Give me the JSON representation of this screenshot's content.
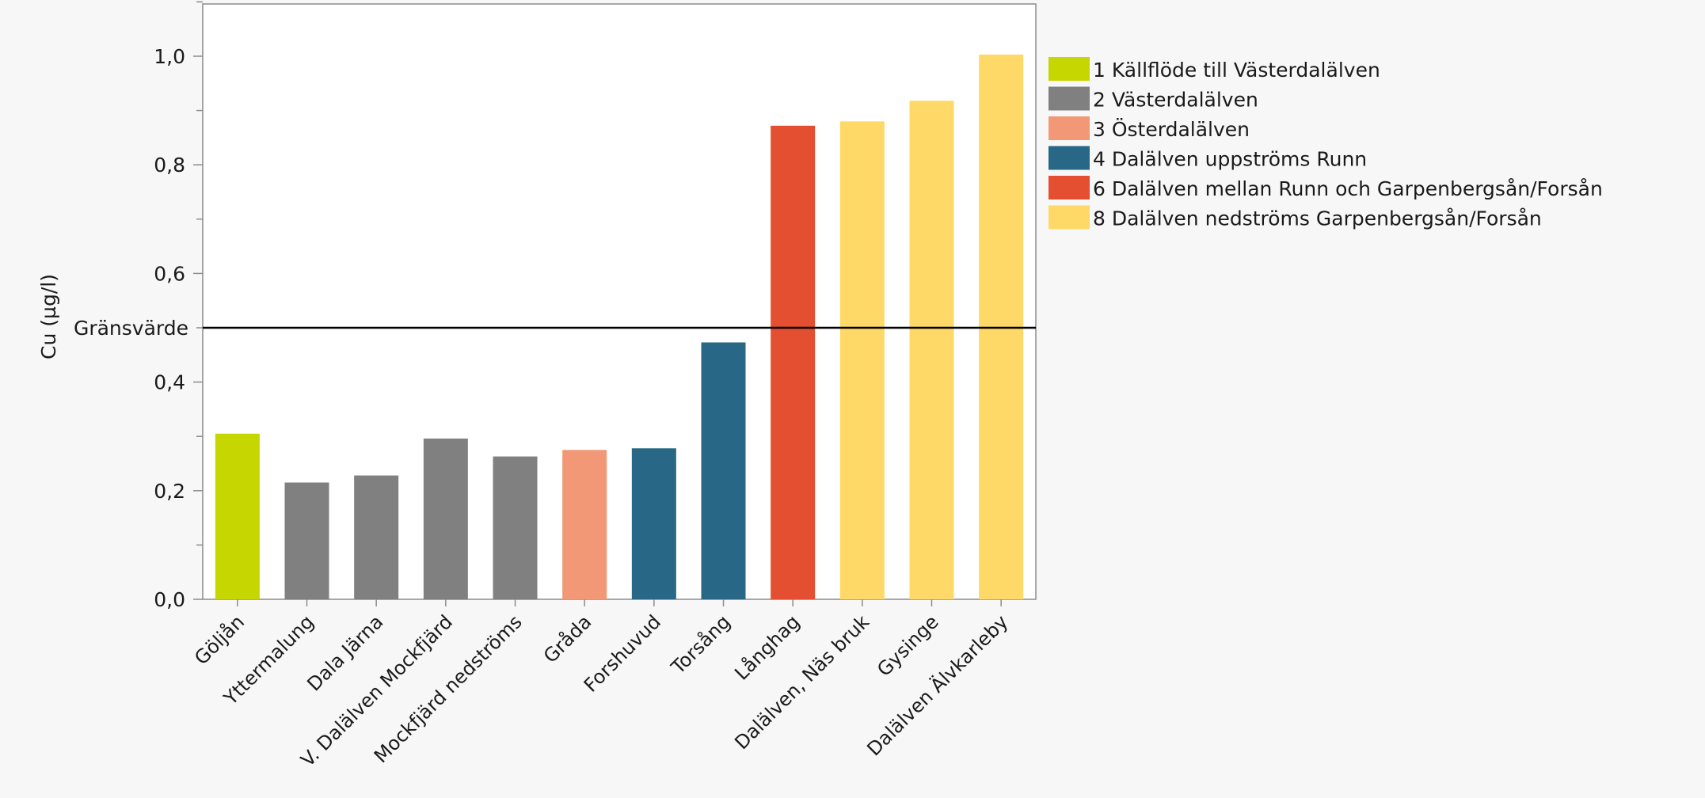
{
  "chart_data": {
    "type": "bar",
    "ylabel": "Cu (µg/l)",
    "ylim": [
      0,
      1.1
    ],
    "yticks": [
      0.0,
      0.2,
      0.4,
      0.6,
      0.8,
      1.0
    ],
    "ytick_labels": [
      "0,0",
      "0,2",
      "0,4",
      "0,6",
      "0,8",
      "1,0"
    ],
    "grid": false,
    "legend_position": "right",
    "reference_line": {
      "label": "Gränsvärde",
      "value": 0.5,
      "color": "#000000"
    },
    "categories": [
      "Göljån",
      "Yttermalung",
      "Dala Järna",
      "V. Dalälven Mockfjärd",
      "Mockfjärd nedströms",
      "Gråda",
      "Forshuvud",
      "Torsång",
      "Långhag",
      "Dalälven, Näs bruk",
      "Gysinge",
      "Dalälven Älvkarleby"
    ],
    "values": [
      0.305,
      0.215,
      0.228,
      0.296,
      0.263,
      0.275,
      0.278,
      0.473,
      0.872,
      0.88,
      0.918,
      1.003
    ],
    "groups": [
      0,
      1,
      1,
      1,
      1,
      2,
      3,
      3,
      4,
      5,
      5,
      5
    ],
    "legend": [
      {
        "label": "1 Källflöde till Västerdalälven",
        "color": "#c5d600"
      },
      {
        "label": "2 Västerdalälven",
        "color": "#808080"
      },
      {
        "label": "3 Österdalälven",
        "color": "#f29876"
      },
      {
        "label": "4 Dalälven uppströms Runn",
        "color": "#286785"
      },
      {
        "label": "6 Dalälven mellan Runn och Garpenbergsån/Forsån",
        "color": "#e44e31"
      },
      {
        "label": "8 Dalälven nedströms Garpenbergsån/Forsån",
        "color": "#fed968"
      }
    ]
  }
}
